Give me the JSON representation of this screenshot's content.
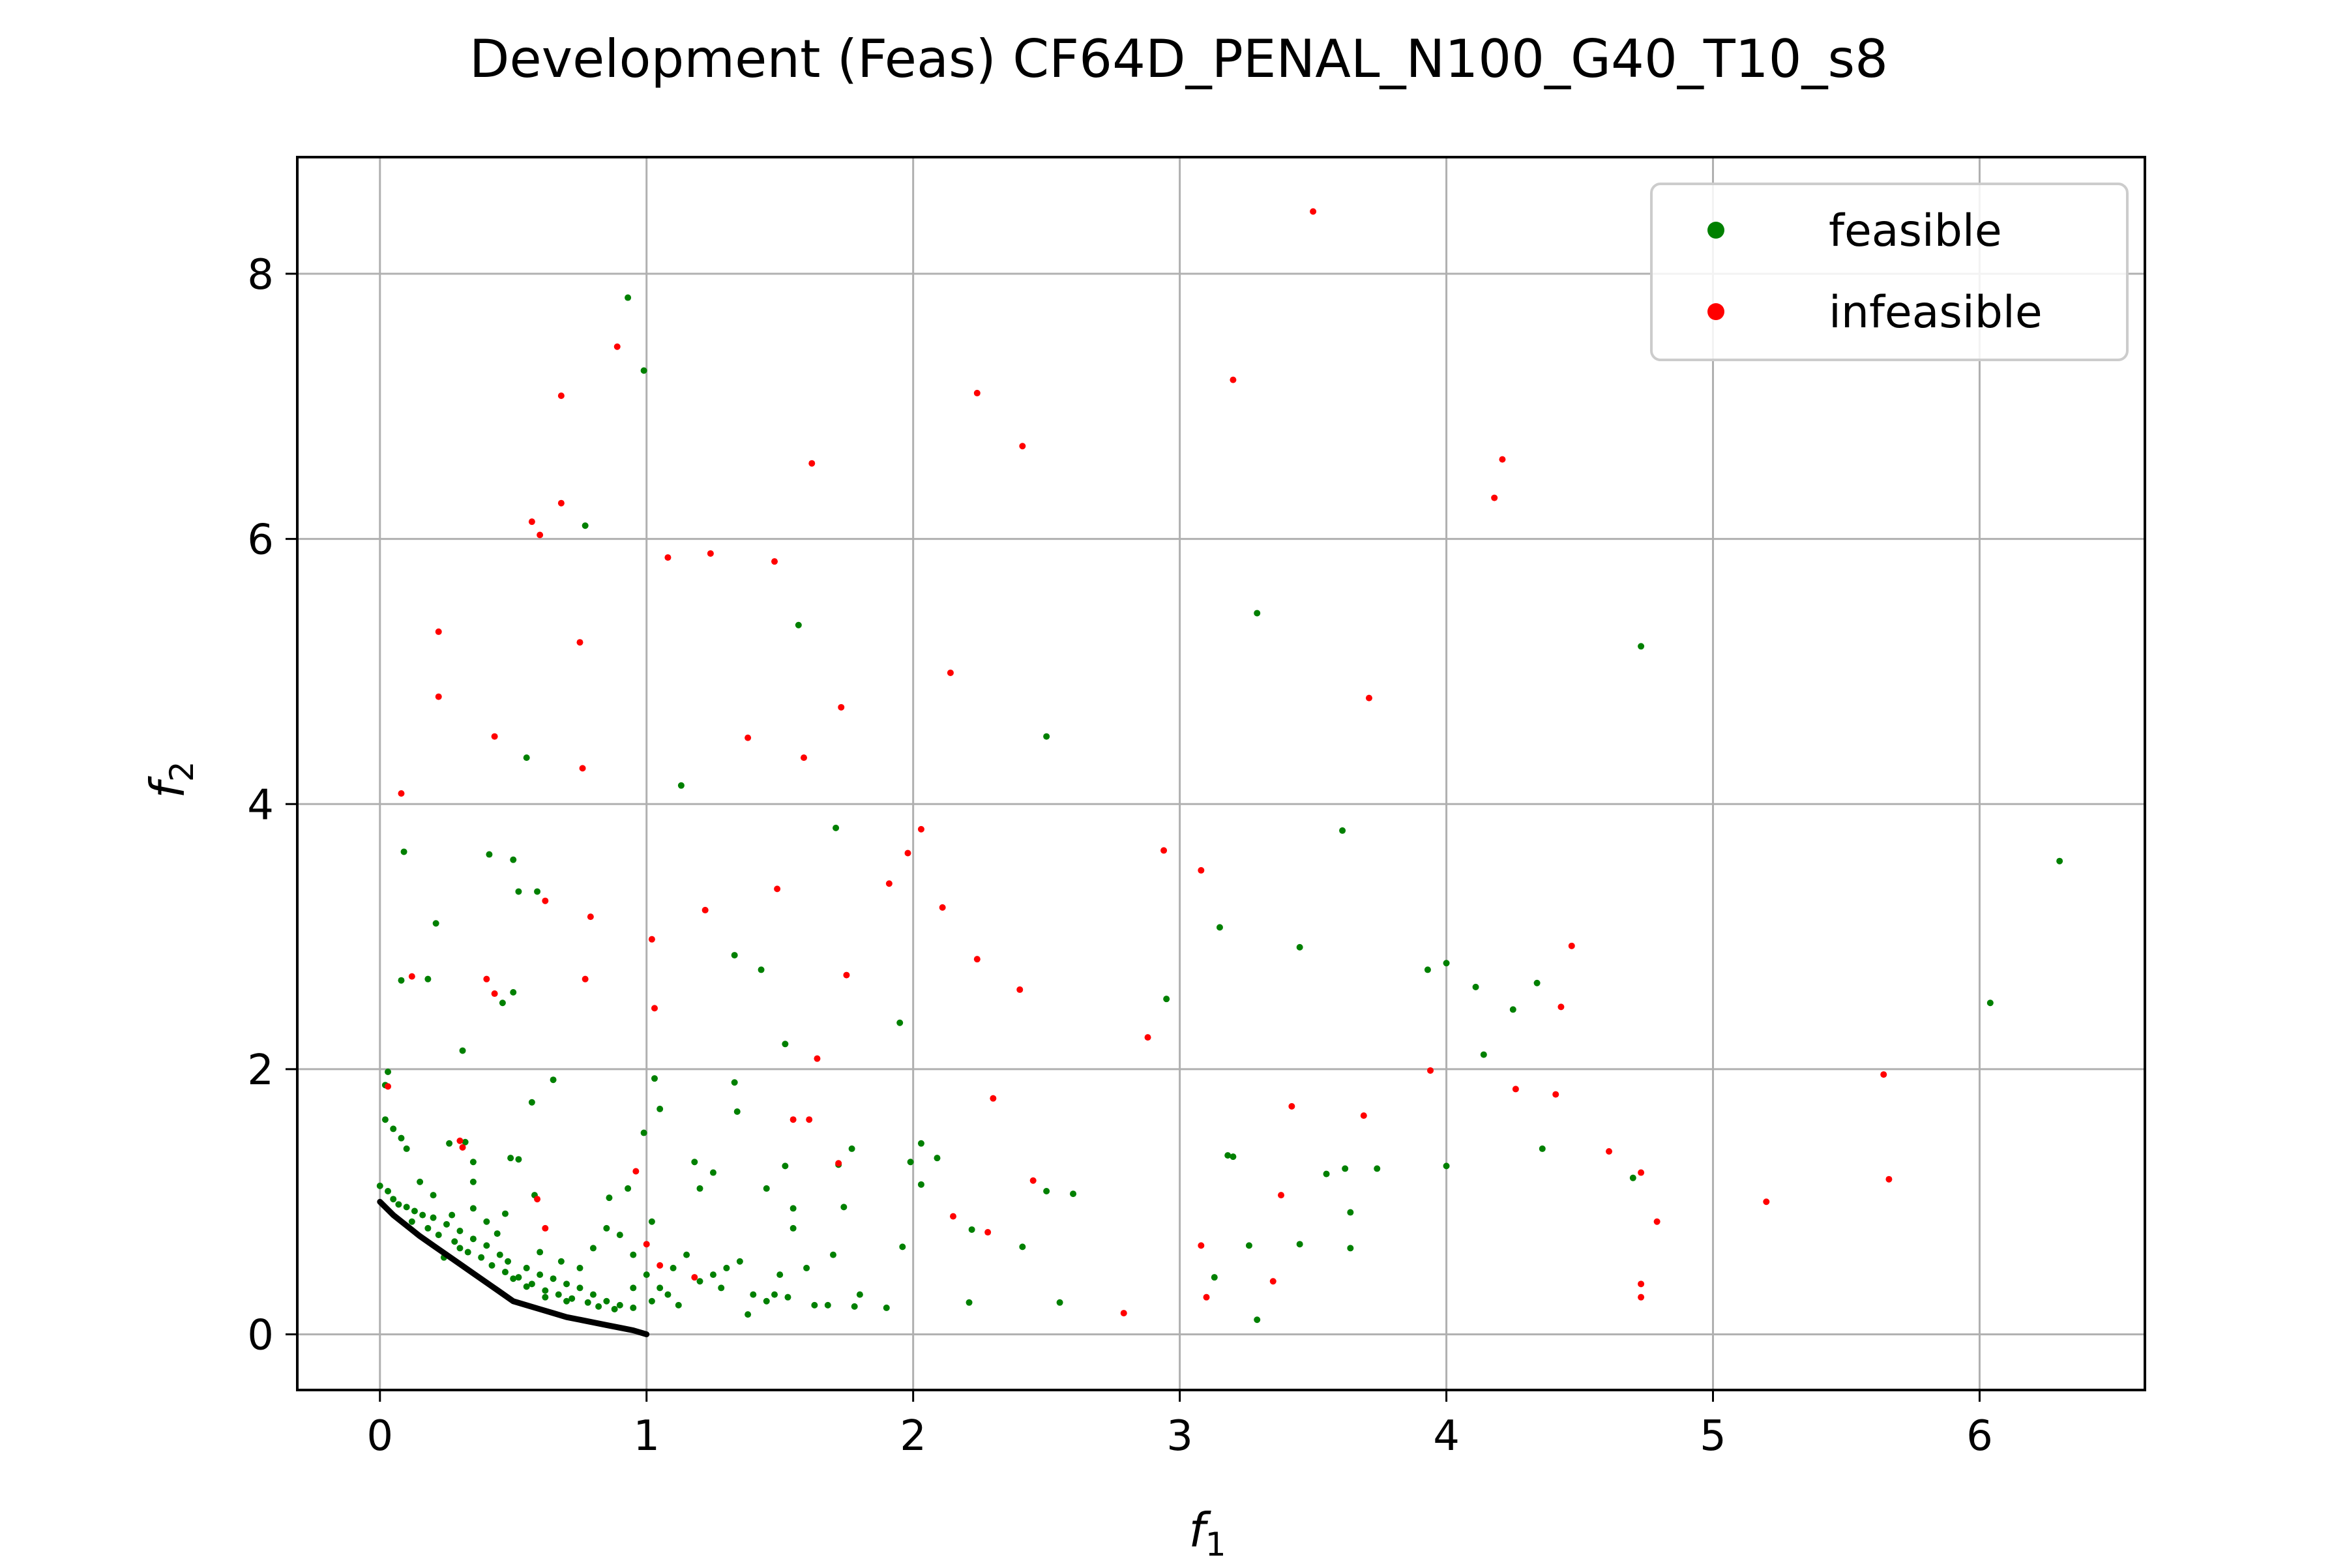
{
  "chart_data": {
    "type": "scatter",
    "title": "Development (Feas) CF64D_PENAL_N100_G40_T10_s8",
    "xlabel": "f",
    "xlabel_sub": "1",
    "ylabel": "f",
    "ylabel_sub": "2",
    "xlim": [
      -0.31,
      6.62
    ],
    "ylim": [
      -0.42,
      8.88
    ],
    "xticks": [
      0,
      1,
      2,
      3,
      4,
      5,
      6
    ],
    "yticks": [
      0,
      2,
      4,
      6,
      8
    ],
    "grid": true,
    "legend": {
      "position": "top-right",
      "entries": [
        {
          "label": "feasible",
          "color": "#008000"
        },
        {
          "label": "infeasible",
          "color": "#ff0000"
        }
      ]
    },
    "pareto_front": {
      "color": "#000000",
      "points": [
        [
          0.0,
          1.0
        ],
        [
          0.05,
          0.9
        ],
        [
          0.1,
          0.82
        ],
        [
          0.15,
          0.74
        ],
        [
          0.2,
          0.67
        ],
        [
          0.25,
          0.6
        ],
        [
          0.3,
          0.53
        ],
        [
          0.35,
          0.46
        ],
        [
          0.4,
          0.39
        ],
        [
          0.45,
          0.32
        ],
        [
          0.5,
          0.25
        ],
        [
          0.55,
          0.22
        ],
        [
          0.6,
          0.19
        ],
        [
          0.65,
          0.16
        ],
        [
          0.7,
          0.13
        ],
        [
          0.75,
          0.11
        ],
        [
          0.8,
          0.09
        ],
        [
          0.85,
          0.07
        ],
        [
          0.9,
          0.05
        ],
        [
          0.95,
          0.03
        ],
        [
          1.0,
          0.0
        ]
      ]
    },
    "series": [
      {
        "name": "feasible",
        "color": "#008000",
        "points": [
          [
            0.93,
            7.82
          ],
          [
            0.99,
            7.27
          ],
          [
            0.77,
            6.1
          ],
          [
            1.57,
            5.35
          ],
          [
            3.29,
            5.44
          ],
          [
            4.73,
            5.19
          ],
          [
            0.55,
            4.35
          ],
          [
            1.13,
            4.14
          ],
          [
            2.5,
            4.51
          ],
          [
            0.09,
            3.64
          ],
          [
            0.41,
            3.62
          ],
          [
            0.5,
            3.58
          ],
          [
            1.71,
            3.82
          ],
          [
            3.61,
            3.8
          ],
          [
            6.3,
            3.57
          ],
          [
            0.52,
            3.34
          ],
          [
            0.59,
            3.34
          ],
          [
            0.21,
            3.1
          ],
          [
            3.15,
            3.07
          ],
          [
            1.33,
            2.86
          ],
          [
            1.43,
            2.75
          ],
          [
            3.45,
            2.92
          ],
          [
            3.93,
            2.75
          ],
          [
            4.0,
            2.8
          ],
          [
            4.11,
            2.62
          ],
          [
            4.34,
            2.65
          ],
          [
            4.25,
            2.45
          ],
          [
            0.08,
            2.67
          ],
          [
            0.18,
            2.68
          ],
          [
            0.5,
            2.58
          ],
          [
            0.46,
            2.5
          ],
          [
            1.95,
            2.35
          ],
          [
            2.95,
            2.53
          ],
          [
            6.04,
            2.5
          ],
          [
            0.31,
            2.14
          ],
          [
            1.52,
            2.19
          ],
          [
            4.14,
            2.11
          ],
          [
            0.03,
            1.98
          ],
          [
            0.02,
            1.88
          ],
          [
            0.65,
            1.92
          ],
          [
            1.03,
            1.93
          ],
          [
            0.57,
            1.75
          ],
          [
            1.05,
            1.7
          ],
          [
            1.33,
            1.9
          ],
          [
            1.34,
            1.68
          ],
          [
            0.02,
            1.62
          ],
          [
            0.05,
            1.55
          ],
          [
            0.08,
            1.48
          ],
          [
            0.1,
            1.4
          ],
          [
            0.26,
            1.44
          ],
          [
            0.32,
            1.45
          ],
          [
            0.35,
            1.3
          ],
          [
            0.49,
            1.33
          ],
          [
            0.52,
            1.32
          ],
          [
            0.99,
            1.52
          ],
          [
            1.18,
            1.3
          ],
          [
            1.25,
            1.22
          ],
          [
            1.52,
            1.27
          ],
          [
            1.72,
            1.28
          ],
          [
            1.77,
            1.4
          ],
          [
            1.99,
            1.3
          ],
          [
            2.03,
            1.44
          ],
          [
            2.09,
            1.33
          ],
          [
            3.18,
            1.35
          ],
          [
            3.2,
            1.34
          ],
          [
            3.55,
            1.21
          ],
          [
            3.62,
            1.25
          ],
          [
            3.74,
            1.25
          ],
          [
            4.0,
            1.27
          ],
          [
            4.36,
            1.4
          ],
          [
            4.7,
            1.18
          ],
          [
            0.15,
            1.15
          ],
          [
            0.2,
            1.05
          ],
          [
            0.35,
            1.15
          ],
          [
            0.58,
            1.05
          ],
          [
            0.86,
            1.03
          ],
          [
            0.93,
            1.1
          ],
          [
            1.2,
            1.1
          ],
          [
            1.45,
            1.1
          ],
          [
            1.55,
            0.95
          ],
          [
            1.74,
            0.96
          ],
          [
            2.03,
            1.13
          ],
          [
            2.5,
            1.08
          ],
          [
            2.6,
            1.06
          ],
          [
            3.64,
            0.92
          ],
          [
            0.0,
            1.12
          ],
          [
            0.03,
            1.08
          ],
          [
            0.05,
            1.02
          ],
          [
            0.07,
            0.98
          ],
          [
            0.1,
            0.96
          ],
          [
            0.13,
            0.93
          ],
          [
            0.16,
            0.9
          ],
          [
            0.2,
            0.88
          ],
          [
            0.25,
            0.83
          ],
          [
            0.3,
            0.78
          ],
          [
            0.35,
            0.72
          ],
          [
            0.4,
            0.67
          ],
          [
            0.45,
            0.6
          ],
          [
            0.48,
            0.55
          ],
          [
            0.55,
            0.5
          ],
          [
            0.6,
            0.45
          ],
          [
            0.65,
            0.42
          ],
          [
            0.7,
            0.38
          ],
          [
            0.75,
            0.35
          ],
          [
            0.8,
            0.3
          ],
          [
            0.85,
            0.25
          ],
          [
            0.9,
            0.22
          ],
          [
            0.95,
            0.2
          ],
          [
            0.12,
            0.85
          ],
          [
            0.18,
            0.8
          ],
          [
            0.22,
            0.75
          ],
          [
            0.28,
            0.7
          ],
          [
            0.33,
            0.62
          ],
          [
            0.38,
            0.58
          ],
          [
            0.42,
            0.52
          ],
          [
            0.47,
            0.47
          ],
          [
            0.52,
            0.43
          ],
          [
            0.57,
            0.38
          ],
          [
            0.62,
            0.33
          ],
          [
            0.67,
            0.3
          ],
          [
            0.72,
            0.27
          ],
          [
            0.78,
            0.24
          ],
          [
            0.82,
            0.21
          ],
          [
            0.88,
            0.19
          ],
          [
            0.3,
            0.65
          ],
          [
            0.5,
            0.42
          ],
          [
            0.55,
            0.36
          ],
          [
            0.62,
            0.28
          ],
          [
            0.7,
            0.25
          ],
          [
            0.75,
            0.5
          ],
          [
            0.8,
            0.65
          ],
          [
            0.85,
            0.8
          ],
          [
            0.9,
            0.75
          ],
          [
            0.95,
            0.6
          ],
          [
            1.0,
            0.45
          ],
          [
            1.05,
            0.35
          ],
          [
            1.1,
            0.5
          ],
          [
            1.15,
            0.6
          ],
          [
            1.2,
            0.4
          ],
          [
            1.25,
            0.45
          ],
          [
            1.3,
            0.5
          ],
          [
            1.35,
            0.55
          ],
          [
            1.4,
            0.3
          ],
          [
            1.45,
            0.25
          ],
          [
            1.5,
            0.45
          ],
          [
            1.55,
            0.8
          ],
          [
            1.6,
            0.5
          ],
          [
            1.7,
            0.6
          ],
          [
            1.8,
            0.3
          ],
          [
            1.9,
            0.2
          ],
          [
            0.35,
            0.95
          ],
          [
            0.4,
            0.85
          ],
          [
            0.44,
            0.76
          ],
          [
            0.6,
            0.62
          ],
          [
            0.68,
            0.55
          ],
          [
            0.95,
            0.35
          ],
          [
            1.02,
            0.25
          ],
          [
            1.08,
            0.3
          ],
          [
            1.12,
            0.22
          ],
          [
            1.28,
            0.35
          ],
          [
            1.38,
            0.15
          ],
          [
            1.48,
            0.3
          ],
          [
            1.68,
            0.22
          ],
          [
            1.78,
            0.21
          ],
          [
            1.96,
            0.66
          ],
          [
            2.22,
            0.79
          ],
          [
            2.41,
            0.66
          ],
          [
            2.21,
            0.24
          ],
          [
            2.55,
            0.24
          ],
          [
            3.13,
            0.43
          ],
          [
            3.26,
            0.67
          ],
          [
            3.45,
            0.68
          ],
          [
            3.64,
            0.65
          ],
          [
            3.29,
            0.11
          ],
          [
            1.53,
            0.28
          ],
          [
            1.63,
            0.22
          ],
          [
            1.02,
            0.85
          ],
          [
            0.27,
            0.9
          ],
          [
            0.47,
            0.91
          ],
          [
            0.24,
            0.58
          ]
        ]
      },
      {
        "name": "infeasible",
        "color": "#ff0000",
        "points": [
          [
            3.5,
            8.47
          ],
          [
            0.89,
            7.45
          ],
          [
            0.68,
            7.08
          ],
          [
            2.24,
            7.1
          ],
          [
            3.2,
            7.2
          ],
          [
            2.41,
            6.7
          ],
          [
            4.21,
            6.6
          ],
          [
            4.18,
            6.31
          ],
          [
            1.62,
            6.57
          ],
          [
            0.68,
            6.27
          ],
          [
            0.57,
            6.13
          ],
          [
            0.6,
            6.03
          ],
          [
            1.08,
            5.86
          ],
          [
            1.24,
            5.89
          ],
          [
            1.48,
            5.83
          ],
          [
            0.22,
            5.3
          ],
          [
            0.75,
            5.22
          ],
          [
            2.14,
            4.99
          ],
          [
            0.22,
            4.81
          ],
          [
            1.73,
            4.73
          ],
          [
            3.71,
            4.8
          ],
          [
            0.43,
            4.51
          ],
          [
            1.38,
            4.5
          ],
          [
            1.59,
            4.35
          ],
          [
            0.76,
            4.27
          ],
          [
            0.08,
            4.08
          ],
          [
            2.03,
            3.81
          ],
          [
            1.98,
            3.63
          ],
          [
            2.94,
            3.65
          ],
          [
            3.08,
            3.5
          ],
          [
            1.91,
            3.4
          ],
          [
            1.49,
            3.36
          ],
          [
            0.62,
            3.27
          ],
          [
            2.11,
            3.22
          ],
          [
            1.22,
            3.2
          ],
          [
            0.79,
            3.15
          ],
          [
            1.02,
            2.98
          ],
          [
            4.47,
            2.93
          ],
          [
            2.24,
            2.83
          ],
          [
            1.75,
            2.71
          ],
          [
            0.12,
            2.7
          ],
          [
            0.4,
            2.68
          ],
          [
            0.77,
            2.68
          ],
          [
            2.4,
            2.6
          ],
          [
            0.43,
            2.57
          ],
          [
            1.03,
            2.46
          ],
          [
            4.43,
            2.47
          ],
          [
            2.88,
            2.24
          ],
          [
            1.64,
            2.08
          ],
          [
            3.94,
            1.99
          ],
          [
            5.64,
            1.96
          ],
          [
            0.03,
            1.87
          ],
          [
            4.26,
            1.85
          ],
          [
            4.41,
            1.81
          ],
          [
            2.3,
            1.78
          ],
          [
            3.42,
            1.72
          ],
          [
            3.69,
            1.65
          ],
          [
            1.55,
            1.62
          ],
          [
            1.61,
            1.62
          ],
          [
            0.3,
            1.46
          ],
          [
            0.31,
            1.41
          ],
          [
            4.61,
            1.38
          ],
          [
            0.96,
            1.23
          ],
          [
            1.72,
            1.29
          ],
          [
            4.73,
            1.22
          ],
          [
            2.45,
            1.16
          ],
          [
            5.66,
            1.17
          ],
          [
            3.38,
            1.05
          ],
          [
            0.59,
            1.02
          ],
          [
            5.2,
            1.0
          ],
          [
            2.15,
            0.89
          ],
          [
            4.79,
            0.85
          ],
          [
            0.62,
            0.8
          ],
          [
            2.28,
            0.77
          ],
          [
            1.0,
            0.68
          ],
          [
            3.08,
            0.67
          ],
          [
            1.05,
            0.52
          ],
          [
            1.18,
            0.43
          ],
          [
            3.35,
            0.4
          ],
          [
            4.73,
            0.38
          ],
          [
            3.1,
            0.28
          ],
          [
            4.73,
            0.28
          ],
          [
            2.79,
            0.16
          ]
        ]
      }
    ]
  }
}
